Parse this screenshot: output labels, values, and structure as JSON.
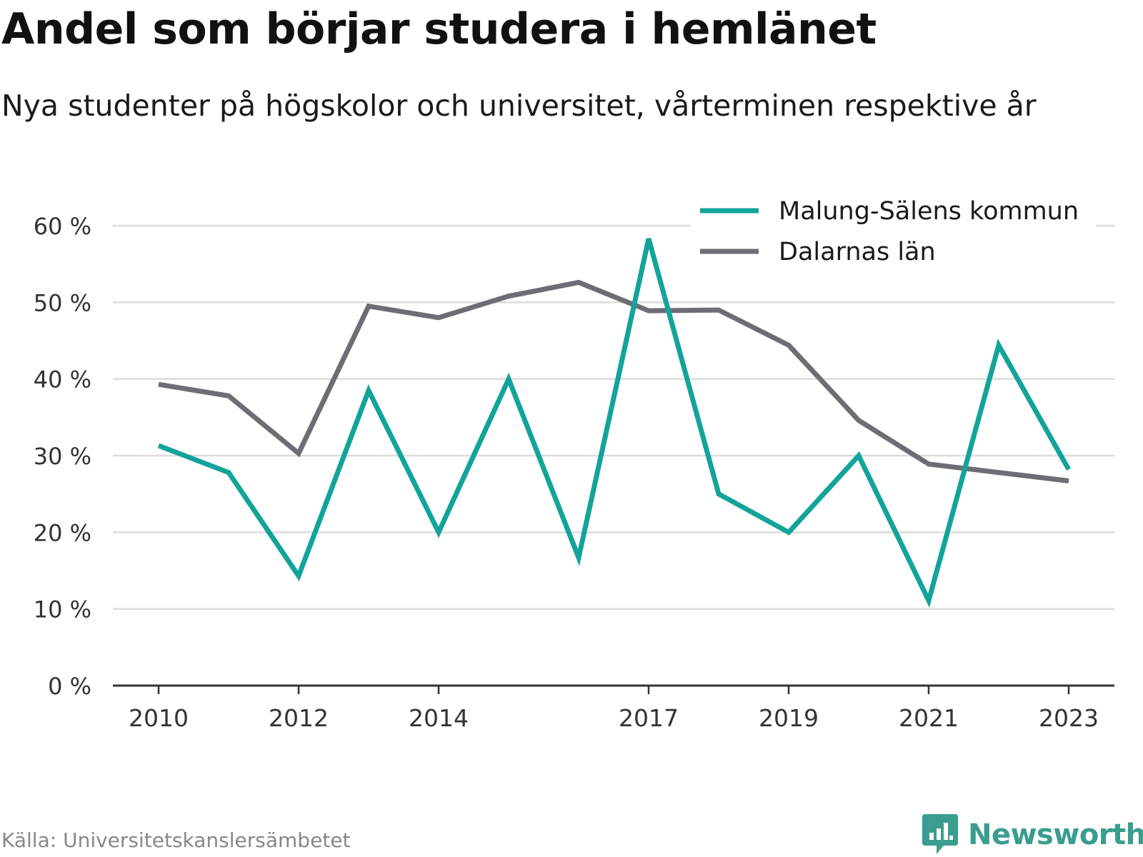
{
  "title": "Andel som börjar studera i hemlänet",
  "subtitle": "Nya studenter på högskolor och universitet, vårterminen respektive år",
  "source": "Källa: Universitetskanslersämbetet",
  "brand": {
    "name": "Newsworthy",
    "icon": "newsworthy-logo-icon",
    "color": "#3a9d8f"
  },
  "chart_data": {
    "type": "line",
    "title": "Andel som börjar studera i hemlänet",
    "subtitle": "Nya studenter på högskolor och universitet, vårterminen respektive år",
    "x": [
      2010,
      2011,
      2012,
      2013,
      2014,
      2015,
      2016,
      2017,
      2018,
      2019,
      2020,
      2021,
      2022,
      2023
    ],
    "x_tick_labels": [
      "2010",
      "2012",
      "2014",
      "2017",
      "2019",
      "2021",
      "2023"
    ],
    "y_tick_labels": [
      "0 %",
      "10 %",
      "20 %",
      "30 %",
      "40 %",
      "50 %",
      "60 %"
    ],
    "ylim": [
      0,
      60
    ],
    "grid": true,
    "legend_position": "top-right",
    "series": [
      {
        "name": "Malung-Sälens kommun",
        "color": "#12a49a",
        "values": [
          31.3,
          27.8,
          14.3,
          38.5,
          20.0,
          40.0,
          16.7,
          58.3,
          25.0,
          20.0,
          30.0,
          11.1,
          44.4,
          28.2
        ]
      },
      {
        "name": "Dalarnas län",
        "color": "#6e6d75",
        "values": [
          39.3,
          37.8,
          30.3,
          49.5,
          48.0,
          50.8,
          52.6,
          48.9,
          49.0,
          44.4,
          34.6,
          28.9,
          27.8,
          26.7
        ]
      }
    ]
  }
}
